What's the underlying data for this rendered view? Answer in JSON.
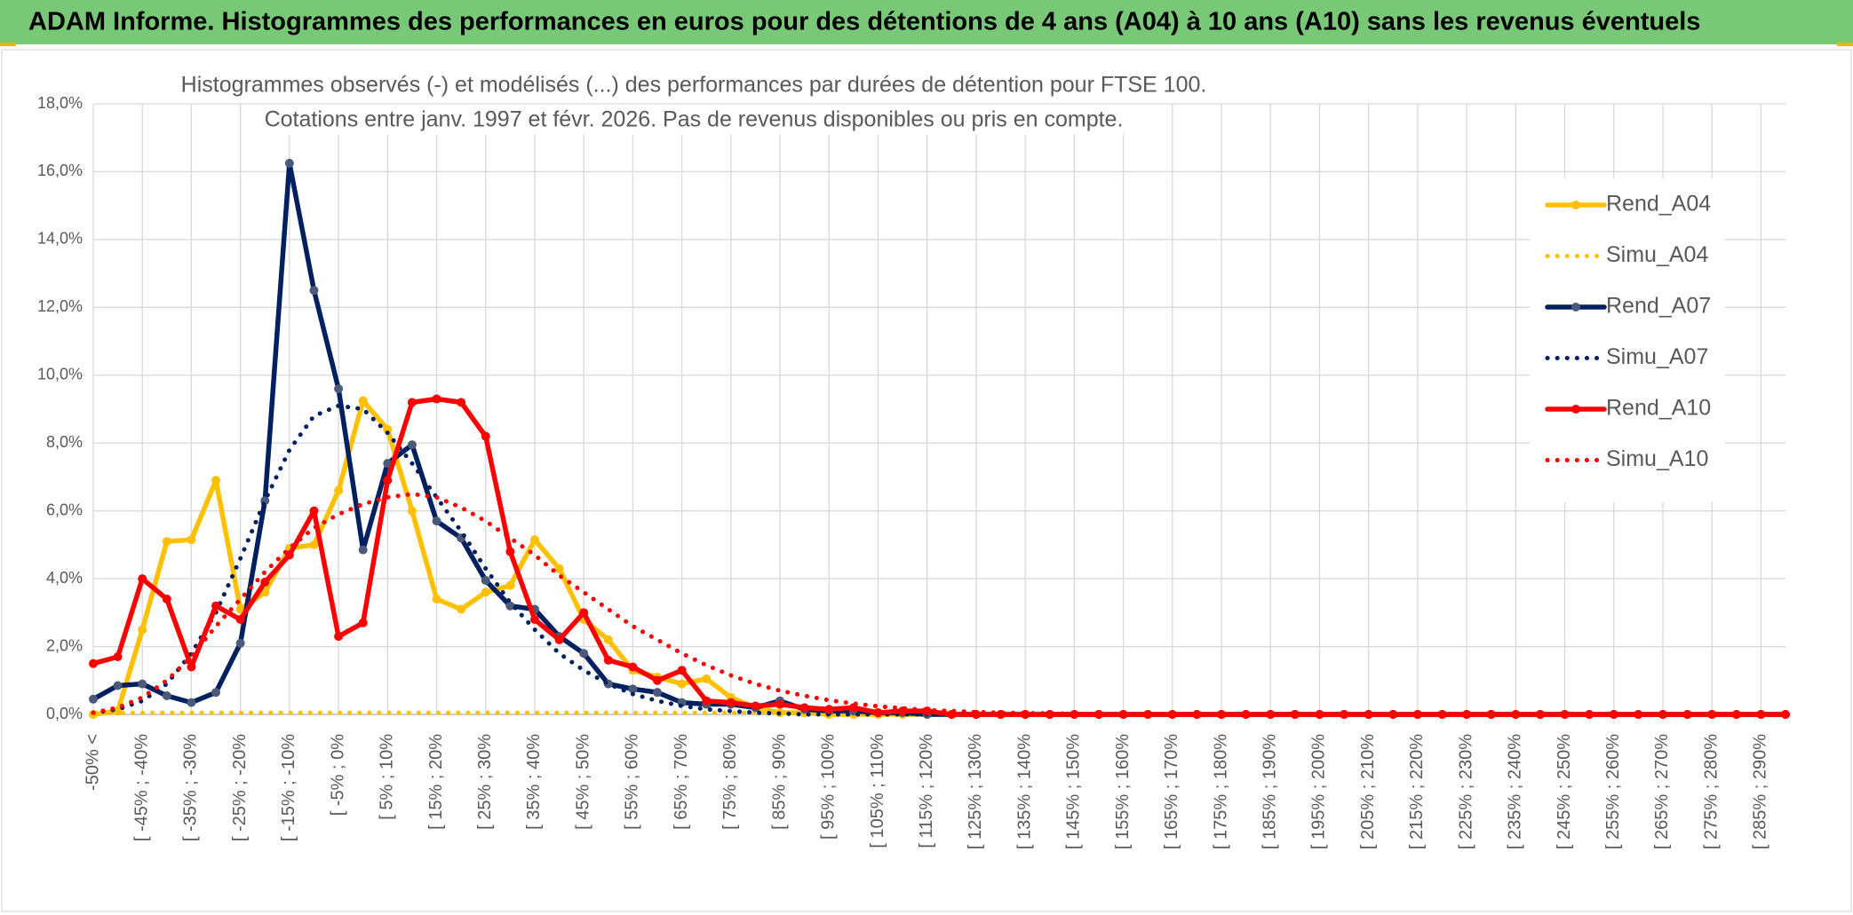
{
  "header": {
    "title": "ADAM Informe. Histogrammes des performances en euros pour des détentions de 4 ans (A04) à 10 ans (A10) sans les revenus éventuels"
  },
  "chart_data": {
    "type": "line",
    "title": "Histogrammes observés (-) et modélisés (...) des performances par durées de détention pour FTSE 100.",
    "subtitle": "Cotations entre janv. 1997 et févr. 2026. Pas de revenus disponibles ou pris en compte.",
    "categories": [
      "-50% <",
      null,
      "[ -45% ; -40%",
      null,
      "[ -35% ; -30%",
      null,
      "[ -25% ; -20%",
      null,
      "[ -15% ; -10%",
      null,
      "[ -5% ; 0%",
      null,
      "[ 5% ; 10%",
      null,
      "[ 15% ; 20%",
      null,
      "[ 25% ; 30%",
      null,
      "[ 35% ; 40%",
      null,
      "[ 45% ; 50%",
      null,
      "[ 55% ; 60%",
      null,
      "[ 65% ; 70%",
      null,
      "[ 75% ; 80%",
      null,
      "[ 85% ; 90%",
      null,
      "[ 95% ; 100%",
      null,
      "[ 105% ; 110%",
      null,
      "[ 115% ; 120%",
      null,
      "[ 125% ; 130%",
      null,
      "[ 135% ; 140%",
      null,
      "[ 145% ; 150%",
      null,
      "[ 155% ; 160%",
      null,
      "[ 165% ; 170%",
      null,
      "[ 175% ; 180%",
      null,
      "[ 185% ; 190%",
      null,
      "[ 195% ; 200%",
      null,
      "[ 205% ; 210%",
      null,
      "[ 215% ; 220%",
      null,
      "[ 225% ; 230%",
      null,
      "[ 235% ; 240%",
      null,
      "[ 245% ; 250%",
      null,
      "[ 255% ; 260%",
      null,
      "[ 265% ; 270%",
      null,
      "[ 275% ; 280%",
      null,
      "[ 285% ; 290%",
      null
    ],
    "series": [
      {
        "name": "Rend_A04",
        "color": "#ffc000",
        "style": "solid",
        "marker": true,
        "values": [
          0,
          0.1,
          2.5,
          5.1,
          5.15,
          6.9,
          3.1,
          3.6,
          4.9,
          5.0,
          6.6,
          9.25,
          8.4,
          6.0,
          3.4,
          3.1,
          3.6,
          3.8,
          5.15,
          4.3,
          2.8,
          2.2,
          1.3,
          1.1,
          0.9,
          1.05,
          0.5,
          0.2,
          0.05,
          0.05,
          0,
          0,
          0,
          0,
          0,
          0,
          0,
          0,
          0,
          0,
          0,
          0,
          0,
          0,
          0,
          0,
          0,
          0,
          0,
          0,
          0,
          0,
          0,
          0,
          0,
          0,
          0,
          0,
          0,
          0,
          0,
          0,
          0,
          0,
          0,
          0,
          0,
          0,
          0,
          0
        ]
      },
      {
        "name": "Simu_A04",
        "color": "#ffc000",
        "style": "dotted",
        "marker": false,
        "values": [
          0.05,
          0.05,
          0.05,
          0.05,
          0.05,
          0.05,
          0.05,
          0.05,
          0.05,
          0.05,
          0.05,
          0.05,
          0.05,
          0.05,
          0.05,
          0.05,
          0.05,
          0.05,
          0.05,
          0.05,
          0.05,
          0.05,
          0.05,
          0.05,
          0.05,
          0.05,
          0.05,
          0.05,
          0.05,
          0.05,
          0.05,
          0.05,
          0,
          0,
          0,
          0,
          0,
          0,
          0,
          0,
          0,
          0,
          0,
          0,
          0,
          0,
          0,
          0,
          0,
          0,
          0,
          0,
          0,
          0,
          0,
          0,
          0,
          0,
          0,
          0,
          0,
          0,
          0,
          0,
          0,
          0,
          0,
          0,
          0,
          0
        ]
      },
      {
        "name": "Rend_A07",
        "color": "#002060",
        "style": "solid",
        "marker": true,
        "values": [
          0.45,
          0.85,
          0.9,
          0.55,
          0.35,
          0.65,
          2.1,
          6.3,
          16.25,
          12.5,
          9.6,
          4.85,
          7.4,
          7.95,
          5.7,
          5.2,
          3.95,
          3.2,
          3.1,
          2.3,
          1.8,
          0.9,
          0.75,
          0.65,
          0.35,
          0.3,
          0.3,
          0.2,
          0.4,
          0.15,
          0.1,
          0.1,
          0.05,
          0.05,
          0,
          0,
          0,
          0,
          0,
          0,
          0,
          0,
          0,
          0,
          0,
          0,
          0,
          0,
          0,
          0,
          0,
          0,
          0,
          0,
          0,
          0,
          0,
          0,
          0,
          0,
          0,
          0,
          0,
          0,
          0,
          0,
          0,
          0,
          0,
          0
        ]
      },
      {
        "name": "Simu_A07",
        "color": "#002060",
        "style": "dotted",
        "marker": false,
        "values": [
          0.05,
          0.15,
          0.4,
          0.9,
          1.8,
          3.0,
          4.6,
          6.3,
          7.8,
          8.8,
          9.1,
          9.0,
          8.3,
          7.4,
          6.4,
          5.4,
          4.3,
          3.3,
          2.5,
          1.8,
          1.3,
          0.9,
          0.6,
          0.4,
          0.25,
          0.15,
          0.1,
          0.05,
          0.03,
          0,
          0,
          0,
          0,
          0,
          0,
          0,
          0,
          0,
          0,
          0,
          0,
          0,
          0,
          0,
          0,
          0,
          0,
          0,
          0,
          0,
          0,
          0,
          0,
          0,
          0,
          0,
          0,
          0,
          0,
          0,
          0,
          0,
          0,
          0,
          0,
          0,
          0,
          0,
          0,
          0
        ]
      },
      {
        "name": "Rend_A10",
        "color": "#ff0000",
        "style": "solid",
        "marker": true,
        "values": [
          1.5,
          1.7,
          4.0,
          3.4,
          1.4,
          3.2,
          2.8,
          3.9,
          4.7,
          6.0,
          2.3,
          2.7,
          6.9,
          9.2,
          9.3,
          9.2,
          8.2,
          4.8,
          2.8,
          2.2,
          3.0,
          1.6,
          1.4,
          1.0,
          1.3,
          0.4,
          0.35,
          0.25,
          0.3,
          0.2,
          0.15,
          0.2,
          0.05,
          0.1,
          0.1,
          0,
          0,
          0,
          0,
          0,
          0,
          0,
          0,
          0,
          0,
          0,
          0,
          0,
          0,
          0,
          0,
          0,
          0,
          0,
          0,
          0,
          0,
          0,
          0,
          0,
          0,
          0,
          0,
          0,
          0,
          0,
          0,
          0,
          0,
          0
        ]
      },
      {
        "name": "Simu_A10",
        "color": "#ff0000",
        "style": "dotted",
        "marker": false,
        "values": [
          0.05,
          0.2,
          0.5,
          1.0,
          1.7,
          2.6,
          3.4,
          4.2,
          4.9,
          5.5,
          5.9,
          6.2,
          6.4,
          6.5,
          6.4,
          6.1,
          5.7,
          5.2,
          4.7,
          4.1,
          3.6,
          3.1,
          2.6,
          2.2,
          1.8,
          1.45,
          1.15,
          0.9,
          0.7,
          0.55,
          0.42,
          0.32,
          0.24,
          0.18,
          0.13,
          0.1,
          0.07,
          0.05,
          0.04,
          0.03,
          0.02,
          0.01,
          0,
          0,
          0,
          0,
          0,
          0,
          0,
          0,
          0,
          0,
          0,
          0,
          0,
          0,
          0,
          0,
          0,
          0,
          0,
          0,
          0,
          0,
          0,
          0,
          0,
          0,
          0,
          0
        ]
      }
    ],
    "ylim": [
      0,
      18
    ],
    "yticks": [
      {
        "value": 0,
        "label": "0,0%"
      },
      {
        "value": 2,
        "label": "2,0%"
      },
      {
        "value": 4,
        "label": "4,0%"
      },
      {
        "value": 6,
        "label": "6,0%"
      },
      {
        "value": 8,
        "label": "8,0%"
      },
      {
        "value": 10,
        "label": "10,0%"
      },
      {
        "value": 12,
        "label": "12,0%"
      },
      {
        "value": 14,
        "label": "14,0%"
      },
      {
        "value": 16,
        "label": "16,0%"
      },
      {
        "value": 18,
        "label": "18,0%"
      }
    ],
    "grid": true,
    "legend": "right"
  }
}
